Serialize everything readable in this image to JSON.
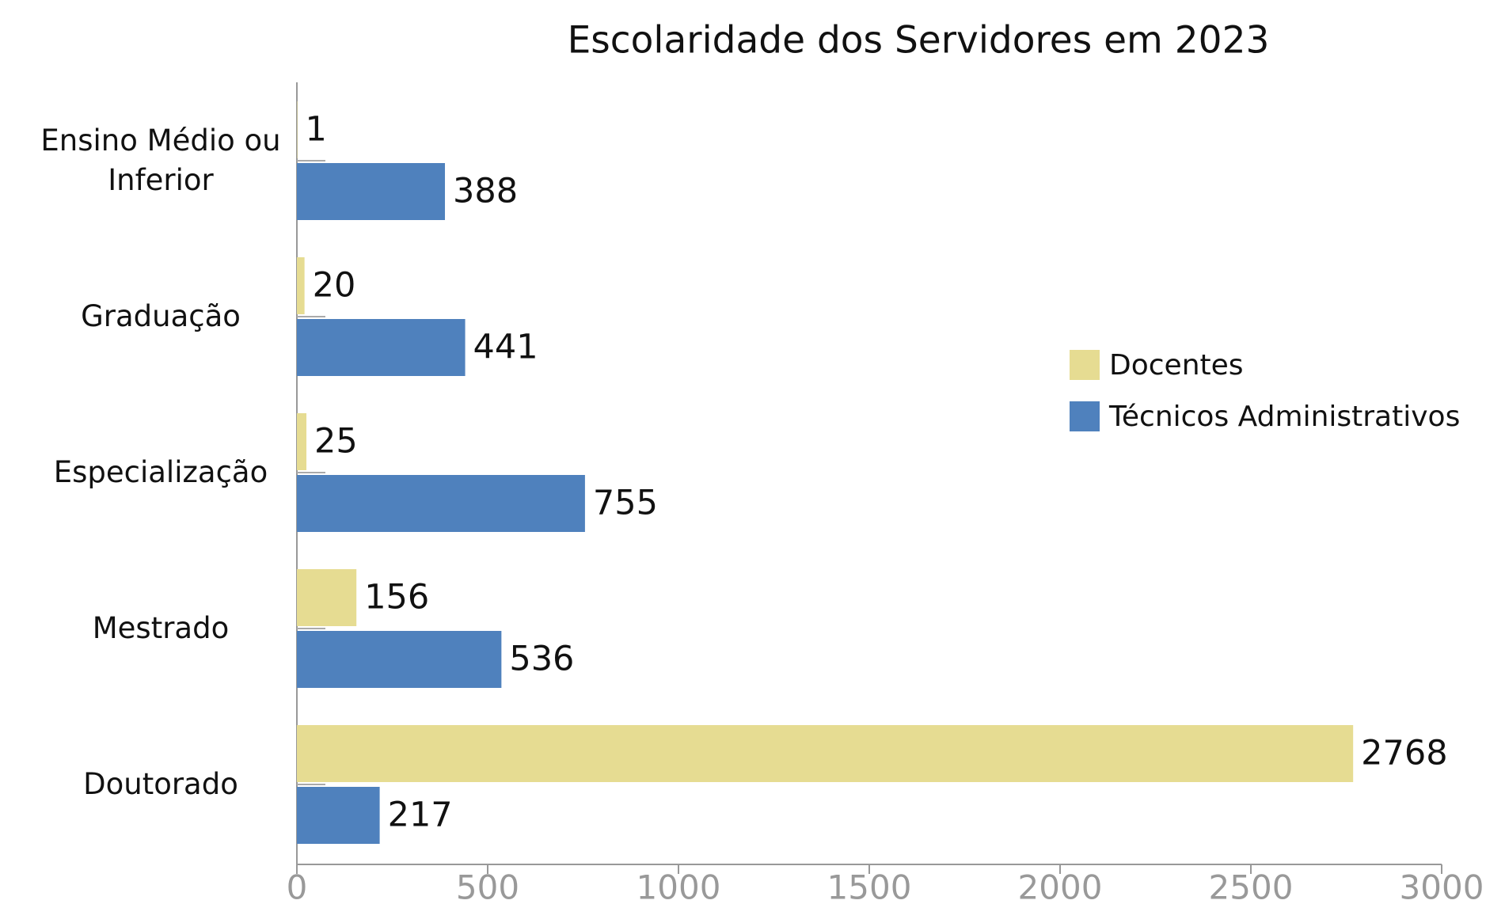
{
  "chart_data": {
    "type": "barh",
    "title": "Escolaridade dos Servidores em 2023",
    "categories": [
      "Ensino Médio ou Inferior",
      "Graduação",
      "Especialização",
      "Mestrado",
      "Doutorado"
    ],
    "series": [
      {
        "name": "Docentes",
        "color": "#e6dc92",
        "values": [
          1,
          20,
          25,
          156,
          2768
        ]
      },
      {
        "name": "Técnicos Administrativos",
        "color": "#4f81bd",
        "values": [
          388,
          441,
          755,
          536,
          217
        ]
      }
    ],
    "xlim": [
      0,
      3000
    ],
    "xticks": [
      0,
      500,
      1000,
      1500,
      2000,
      2500,
      3000
    ],
    "legend": "right"
  }
}
